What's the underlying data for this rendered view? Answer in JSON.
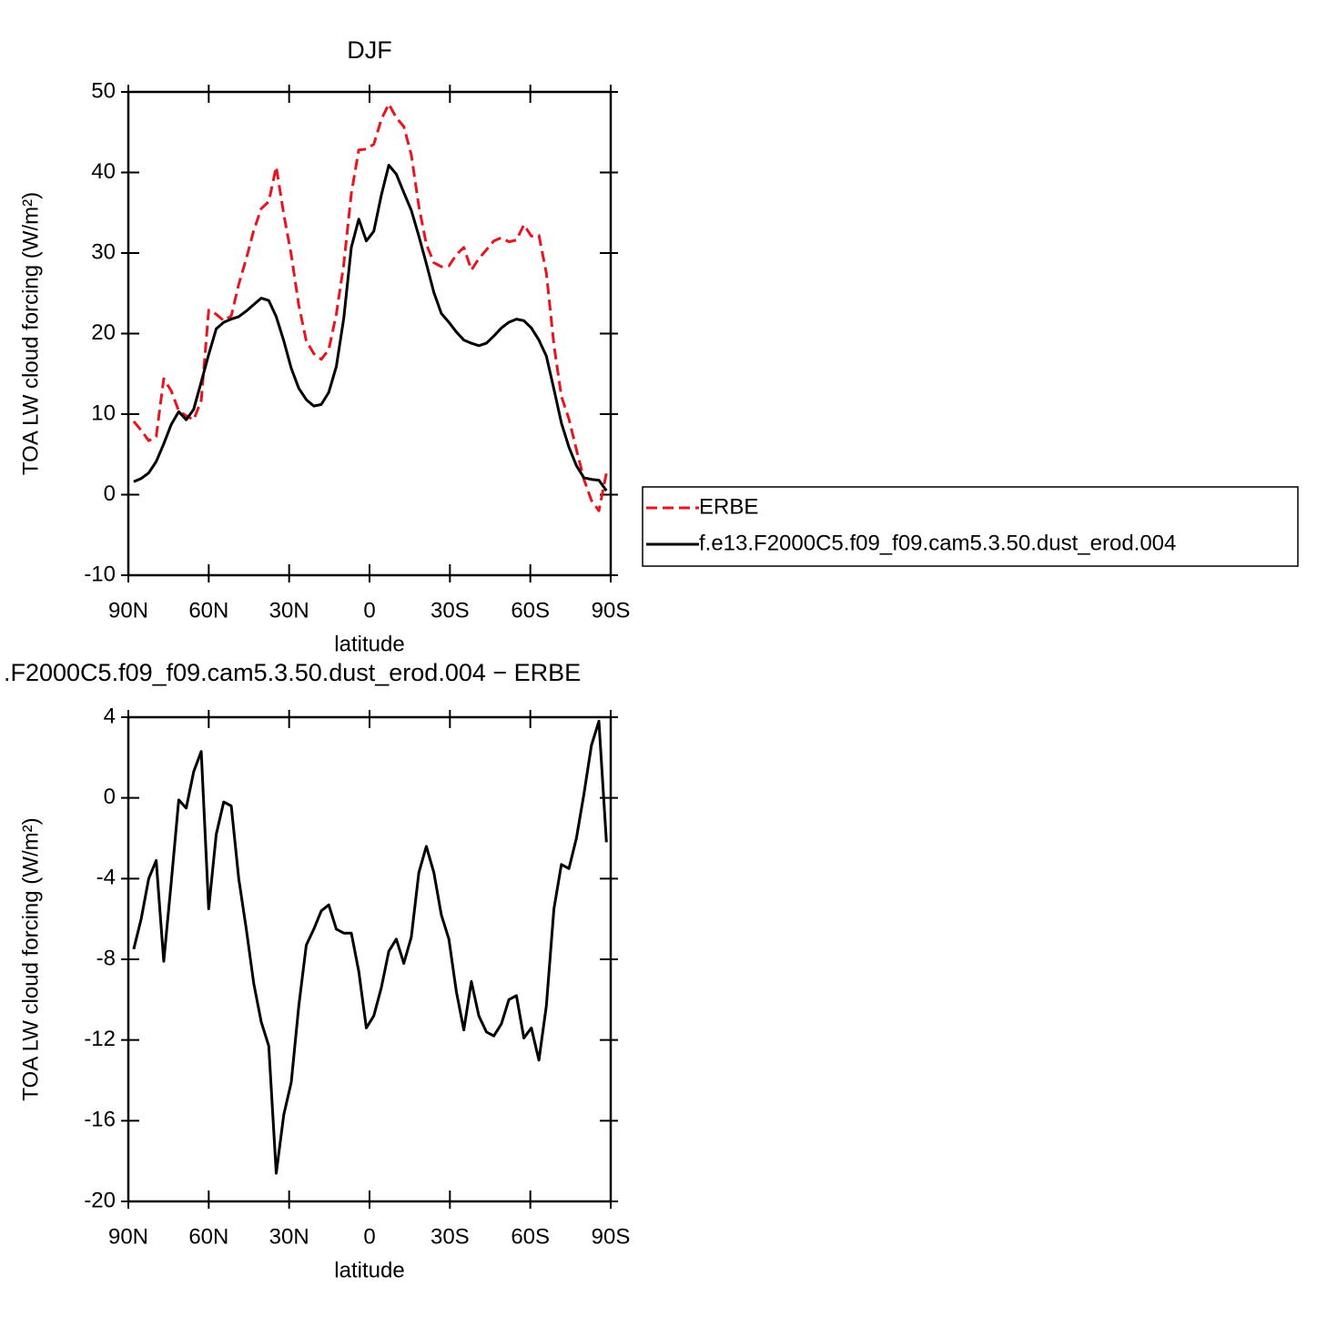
{
  "chart_data": [
    {
      "type": "line",
      "title": "DJF",
      "x_label": "latitude",
      "y_label": "TOA LW cloud forcing (W/m²)",
      "x": [
        88,
        85.2,
        82.4,
        79.6,
        76.8,
        74,
        71.2,
        68.4,
        65.6,
        62.8,
        60,
        57.2,
        54.4,
        51.6,
        48.8,
        46,
        43.2,
        40.4,
        37.6,
        34.8,
        32,
        29.2,
        26.4,
        23.6,
        20.8,
        18,
        15.2,
        12.4,
        9.6,
        6.8,
        4,
        1.2,
        -1.6,
        -4.4,
        -7.2,
        -10,
        -12.8,
        -15.6,
        -18.4,
        -21.2,
        -24,
        -26.8,
        -29.6,
        -32.4,
        -35.2,
        -38,
        -40.8,
        -43.6,
        -46.4,
        -49.2,
        -52,
        -54.8,
        -57.6,
        -60.4,
        -63.2,
        -66,
        -68.8,
        -71.6,
        -74.4,
        -77.2,
        -80,
        -82.8,
        -85.6,
        -88.4
      ],
      "series": [
        {
          "name": "ERBE",
          "color": "#e8141e",
          "line_style": "dashed",
          "values": [
            9.1,
            8.0,
            6.7,
            7.2,
            14.4,
            12.9,
            10.4,
            9.8,
            9.3,
            11.7,
            22.9,
            22.4,
            21.6,
            22.2,
            26.1,
            29.3,
            32.8,
            35.5,
            36.4,
            40.7,
            34.8,
            29.8,
            23.5,
            19.1,
            17.5,
            16.8,
            18.0,
            22.4,
            28.6,
            37.4,
            42.8,
            42.9,
            43.5,
            46.6,
            48.5,
            46.8,
            45.7,
            42.2,
            35.8,
            31.1,
            28.8,
            28.3,
            28.4,
            29.8,
            30.7,
            27.9,
            29.3,
            30.4,
            31.5,
            31.9,
            31.4,
            31.6,
            33.5,
            32.1,
            32.2,
            27.5,
            18.6,
            12.2,
            9.4,
            5.6,
            1.9,
            -0.7,
            -2.0,
            2.7
          ]
        },
        {
          "name": "f.e13.F2000C5.f09_f09.cam5.3.50.dust_erod.004",
          "color": "#000000",
          "line_style": "solid",
          "values": [
            1.6,
            2.0,
            2.7,
            4.1,
            6.3,
            8.7,
            10.3,
            9.3,
            10.6,
            14.0,
            17.4,
            20.6,
            21.4,
            21.8,
            22.1,
            22.8,
            23.6,
            24.4,
            24.1,
            22.1,
            19.1,
            15.7,
            13.2,
            11.8,
            11.0,
            11.2,
            12.7,
            15.9,
            21.9,
            30.7,
            34.2,
            31.5,
            32.7,
            37.2,
            40.9,
            39.8,
            37.5,
            35.3,
            32.1,
            28.7,
            25.1,
            22.5,
            21.4,
            20.2,
            19.2,
            18.8,
            18.5,
            18.8,
            19.7,
            20.7,
            21.4,
            21.8,
            21.6,
            20.7,
            19.2,
            17.2,
            13.1,
            8.9,
            5.9,
            3.6,
            2.1,
            1.9,
            1.8,
            0.5
          ]
        }
      ],
      "xlim": [
        90,
        -90
      ],
      "xticks": [
        {
          "value": 90,
          "label": "90N"
        },
        {
          "value": 60,
          "label": "60N"
        },
        {
          "value": 30,
          "label": "30N"
        },
        0,
        {
          "value": -30,
          "label": "30S"
        },
        {
          "value": -60,
          "label": "60S"
        },
        {
          "value": -90,
          "label": "90S"
        }
      ],
      "ylim": [
        -10,
        50
      ],
      "yticks": [
        -10,
        0,
        10,
        20,
        30,
        40,
        50
      ],
      "legend": "right"
    },
    {
      "type": "line",
      "title": ".F2000C5.f09_f09.cam5.3.50.dust_erod.004 − ERBE",
      "x_label": "latitude",
      "y_label": "TOA LW cloud forcing (W/m²)",
      "x": [
        88,
        85.2,
        82.4,
        79.6,
        76.8,
        74,
        71.2,
        68.4,
        65.6,
        62.8,
        60,
        57.2,
        54.4,
        51.6,
        48.8,
        46,
        43.2,
        40.4,
        37.6,
        34.8,
        32,
        29.2,
        26.4,
        23.6,
        20.8,
        18,
        15.2,
        12.4,
        9.6,
        6.8,
        4,
        1.2,
        -1.6,
        -4.4,
        -7.2,
        -10,
        -12.8,
        -15.6,
        -18.4,
        -21.2,
        -24,
        -26.8,
        -29.6,
        -32.4,
        -35.2,
        -38,
        -40.8,
        -43.6,
        -46.4,
        -49.2,
        -52,
        -54.8,
        -57.6,
        -60.4,
        -63.2,
        -66,
        -68.8,
        -71.6,
        -74.4,
        -77.2,
        -80,
        -82.8,
        -85.6,
        -88.4
      ],
      "color": "#000000",
      "values": [
        -7.5,
        -6.0,
        -4.0,
        -3.1,
        -8.1,
        -4.2,
        -0.1,
        -0.5,
        1.3,
        2.3,
        -5.5,
        -1.8,
        -0.2,
        -0.4,
        -4.0,
        -6.5,
        -9.2,
        -11.1,
        -12.3,
        -18.6,
        -15.7,
        -14.1,
        -10.3,
        -7.3,
        -6.5,
        -5.6,
        -5.3,
        -6.5,
        -6.7,
        -6.7,
        -8.6,
        -11.4,
        -10.8,
        -9.4,
        -7.6,
        -7.0,
        -8.2,
        -6.9,
        -3.7,
        -2.4,
        -3.7,
        -5.8,
        -7.0,
        -9.6,
        -11.5,
        -9.1,
        -10.8,
        -11.6,
        -11.8,
        -11.2,
        -10.0,
        -9.8,
        -11.9,
        -11.4,
        -13.0,
        -10.3,
        -5.5,
        -3.3,
        -3.5,
        -2.0,
        0.2,
        2.6,
        3.8,
        -2.2
      ],
      "xlim": [
        90,
        -90
      ],
      "xticks": [
        {
          "value": 90,
          "label": "90N"
        },
        {
          "value": 60,
          "label": "60N"
        },
        {
          "value": 30,
          "label": "30N"
        },
        0,
        {
          "value": -30,
          "label": "30S"
        },
        {
          "value": -60,
          "label": "60S"
        },
        {
          "value": -90,
          "label": "90S"
        }
      ],
      "ylim": [
        -20,
        4
      ],
      "yticks": [
        -20,
        -16,
        -12,
        -8,
        -4,
        0,
        4
      ]
    }
  ]
}
